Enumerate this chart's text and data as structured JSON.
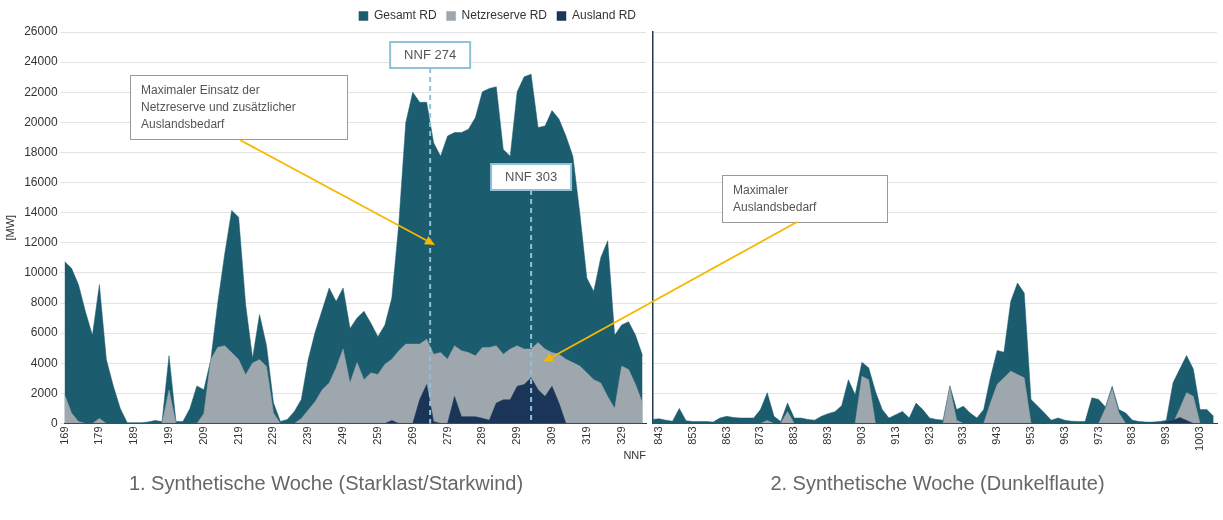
{
  "chart_data": [
    {
      "type": "area",
      "ylabel": "[MW]",
      "xlabel": "NNF",
      "x": [
        169,
        171,
        173,
        175,
        177,
        179,
        181,
        183,
        185,
        187,
        189,
        191,
        193,
        195,
        197,
        199,
        201,
        203,
        205,
        207,
        209,
        211,
        213,
        215,
        217,
        219,
        221,
        223,
        225,
        227,
        229,
        231,
        233,
        235,
        237,
        239,
        241,
        243,
        245,
        247,
        249,
        251,
        253,
        255,
        257,
        259,
        261,
        263,
        265,
        267,
        269,
        271,
        273,
        275,
        277,
        279,
        281,
        283,
        285,
        287,
        289,
        291,
        293,
        295,
        297,
        299,
        301,
        303,
        305,
        307,
        309,
        311,
        313,
        315,
        317,
        319,
        321,
        323,
        325,
        327,
        329,
        331,
        333,
        335
      ],
      "xlim": [
        169,
        336
      ],
      "xticks": [
        169,
        179,
        189,
        199,
        209,
        219,
        229,
        239,
        249,
        259,
        269,
        279,
        289,
        299,
        309,
        319,
        329
      ],
      "ylim": [
        0,
        26000
      ],
      "yticks": [
        0,
        2000,
        4000,
        6000,
        8000,
        10000,
        12000,
        14000,
        16000,
        18000,
        20000,
        22000,
        24000,
        26000
      ],
      "grid": "y",
      "legend": "top right",
      "series": [
        {
          "name": "Gesamt RD",
          "color": "#1b5c6e",
          "values": [
            10750,
            10300,
            9220,
            7420,
            5860,
            9220,
            4240,
            2490,
            1000,
            50,
            50,
            50,
            100,
            200,
            130,
            4500,
            130,
            130,
            1000,
            2490,
            2240,
            4240,
            8000,
            11260,
            14150,
            13700,
            7900,
            4330,
            7230,
            5180,
            1370,
            130,
            270,
            800,
            1590,
            4270,
            6090,
            7540,
            9000,
            8100,
            9000,
            6310,
            7000,
            7450,
            6650,
            5760,
            6540,
            8330,
            13240,
            19980,
            22000,
            21330,
            21330,
            18650,
            17750,
            19090,
            19320,
            19320,
            19540,
            20320,
            22030,
            22250,
            22360,
            18200,
            17750,
            22030,
            23020,
            23200,
            19650,
            19760,
            20780,
            20220,
            19090,
            17750,
            13940,
            9660,
            8770,
            11010,
            12130,
            5850,
            6540,
            6760,
            5850,
            4510
          ]
        },
        {
          "name": "Netzreserve RD",
          "color": "#9ea7ad",
          "values": [
            1920,
            700,
            130,
            0,
            0,
            330,
            0,
            0,
            0,
            0,
            0,
            0,
            0,
            0,
            0,
            2220,
            0,
            0,
            0,
            0,
            650,
            4240,
            5060,
            5160,
            4710,
            4240,
            3230,
            4020,
            4240,
            3790,
            700,
            0,
            0,
            0,
            330,
            900,
            1460,
            2240,
            2690,
            3700,
            4940,
            2690,
            4040,
            2910,
            3360,
            3250,
            3930,
            4270,
            4830,
            5270,
            5270,
            5270,
            5600,
            4600,
            4710,
            4270,
            5160,
            4830,
            4710,
            4490,
            5050,
            5050,
            5160,
            4600,
            4940,
            5160,
            4940,
            4940,
            5380,
            4940,
            4710,
            4600,
            4270,
            4040,
            3810,
            3360,
            2910,
            2690,
            1790,
            1000,
            3810,
            3590,
            2580,
            1350
          ]
        },
        {
          "name": "Ausland RD",
          "color": "#1a3558",
          "values": [
            0,
            0,
            0,
            0,
            0,
            0,
            0,
            0,
            0,
            0,
            0,
            0,
            0,
            0,
            0,
            0,
            0,
            0,
            0,
            0,
            0,
            0,
            0,
            0,
            0,
            0,
            0,
            0,
            0,
            0,
            0,
            0,
            0,
            0,
            0,
            0,
            0,
            0,
            0,
            0,
            0,
            0,
            0,
            0,
            0,
            0,
            0,
            200,
            0,
            0,
            0,
            1590,
            2580,
            130,
            0,
            0,
            1790,
            450,
            450,
            450,
            340,
            220,
            1350,
            1570,
            1570,
            2470,
            2580,
            3030,
            2240,
            1790,
            2470,
            1350,
            0,
            0,
            0,
            0,
            0,
            0,
            0,
            0,
            0,
            0,
            0,
            0
          ]
        }
      ],
      "ref_lines": [
        {
          "axis": "x",
          "value": 274,
          "label": "NNF 274",
          "color": "#8fc1d9",
          "line_style": "dashed"
        },
        {
          "axis": "x",
          "value": 303,
          "label": "NNF 303",
          "color": "#8fc1d9",
          "line_style": "dashed"
        }
      ],
      "annotations": [
        "1. Synthetische Woche (Starklast/Starkwind)",
        "Maximaler Einsatz der Netzreserve und zusätzlicher Auslandsbedarf",
        "Maximaler Auslandsbedarf"
      ]
    },
    {
      "type": "area",
      "x": [
        841,
        843,
        845,
        847,
        849,
        851,
        853,
        855,
        857,
        859,
        861,
        863,
        865,
        867,
        869,
        871,
        873,
        875,
        877,
        879,
        881,
        883,
        885,
        887,
        889,
        891,
        893,
        895,
        897,
        899,
        901,
        903,
        905,
        907,
        909,
        911,
        913,
        915,
        917,
        919,
        921,
        923,
        925,
        927,
        929,
        931,
        933,
        935,
        937,
        939,
        941,
        943,
        945,
        947,
        949,
        951,
        953,
        955,
        957,
        959,
        961,
        963,
        965,
        967,
        969,
        971,
        973,
        975,
        977,
        979,
        981,
        983,
        985,
        987,
        989,
        991,
        993,
        995,
        997,
        999,
        1001,
        1003,
        1005,
        1007
      ],
      "xlim": [
        841,
        1008
      ],
      "xticks": [
        843,
        853,
        863,
        873,
        883,
        893,
        903,
        913,
        923,
        933,
        943,
        953,
        963,
        973,
        983,
        993,
        1003
      ],
      "ylim": [
        0,
        26000
      ],
      "yticks": [
        0,
        2000,
        4000,
        6000,
        8000,
        10000,
        12000,
        14000,
        16000,
        18000,
        20000,
        22000,
        24000,
        26000
      ],
      "grid": "y",
      "tick_labels": "x",
      "series": [
        {
          "color": "#1b5c6e",
          "values": [
            270,
            310,
            220,
            150,
            1000,
            180,
            130,
            130,
            130,
            90,
            360,
            470,
            400,
            360,
            360,
            360,
            920,
            2040,
            470,
            130,
            1350,
            360,
            360,
            270,
            220,
            470,
            650,
            780,
            1180,
            2900,
            1900,
            4060,
            3700,
            2130,
            920,
            360,
            580,
            800,
            360,
            1350,
            920,
            360,
            270,
            220,
            2500,
            920,
            1150,
            690,
            360,
            920,
            3050,
            4850,
            4730,
            8100,
            9330,
            8660,
            1590,
            1150,
            690,
            220,
            360,
            220,
            150,
            130,
            130,
            1700,
            1590,
            1100,
            2470,
            920,
            690,
            220,
            130,
            90,
            90,
            130,
            200,
            2710,
            3610,
            4510,
            3610,
            920,
            920,
            470
          ]
        },
        {
          "color": "#9ea7ad",
          "values": [
            0,
            0,
            0,
            0,
            0,
            0,
            0,
            0,
            0,
            0,
            0,
            0,
            0,
            0,
            0,
            0,
            0,
            200,
            0,
            0,
            800,
            0,
            0,
            0,
            0,
            0,
            0,
            0,
            0,
            0,
            0,
            3140,
            2910,
            0,
            0,
            0,
            0,
            0,
            0,
            0,
            0,
            0,
            0,
            0,
            2400,
            220,
            0,
            0,
            0,
            0,
            1350,
            2600,
            3030,
            3480,
            3250,
            3030,
            0,
            0,
            0,
            0,
            0,
            0,
            0,
            0,
            0,
            0,
            0,
            1000,
            2300,
            700,
            0,
            0,
            0,
            0,
            0,
            0,
            0,
            0,
            1000,
            2040,
            1800,
            0,
            0,
            0
          ]
        },
        {
          "color": "#1a3558",
          "values": [
            0,
            0,
            0,
            0,
            0,
            0,
            0,
            0,
            0,
            0,
            0,
            0,
            0,
            0,
            0,
            0,
            0,
            0,
            0,
            0,
            0,
            0,
            0,
            0,
            0,
            0,
            0,
            0,
            0,
            0,
            0,
            0,
            0,
            0,
            0,
            0,
            0,
            0,
            0,
            0,
            0,
            0,
            0,
            0,
            0,
            0,
            0,
            0,
            0,
            0,
            0,
            0,
            0,
            0,
            0,
            0,
            0,
            0,
            0,
            0,
            0,
            0,
            0,
            0,
            0,
            0,
            0,
            0,
            0,
            0,
            0,
            0,
            0,
            0,
            0,
            0,
            100,
            200,
            400,
            200,
            0,
            0,
            0,
            0
          ]
        }
      ],
      "annotations": [
        "2. Synthetische Woche (Dunkelflaute)"
      ]
    }
  ]
}
